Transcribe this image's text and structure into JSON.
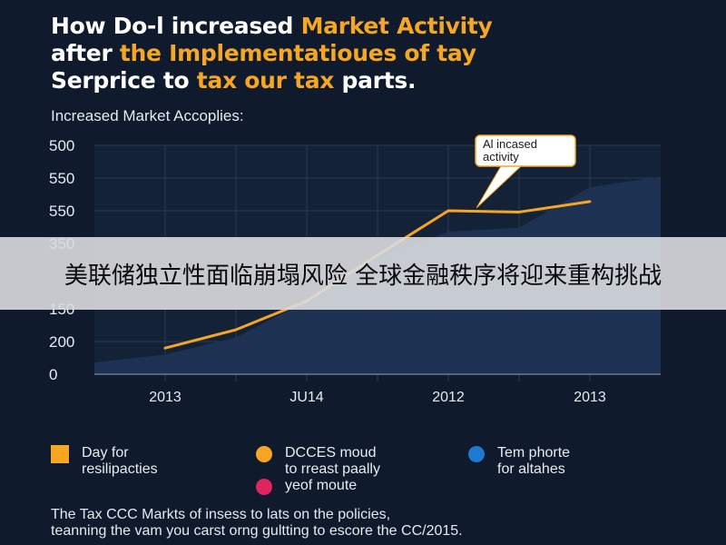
{
  "header": {
    "title_line1_white": "How Do-l increased ",
    "title_line1_orange": "Market Activity",
    "title_line2_white": "after ",
    "title_line2_orange": "the Implementatioues of tay",
    "title_line3_white": "Serprice to ",
    "title_line3_orange": "tax our tax",
    "title_line3_end": " parts."
  },
  "chart_data": {
    "type": "line",
    "title": "How Do-l increased Market Activity after the Implementatioues of tay Serprice to tax our tax parts.",
    "subtitle": "Increased Market Accoplies:",
    "y_tick_labels": [
      "500",
      "550",
      "550",
      "350",
      "",
      "150",
      "200",
      "0"
    ],
    "x_tick_labels": [
      "2013",
      "JU14",
      "2012",
      "2013"
    ],
    "series": [
      {
        "type": "line",
        "color": "#f6a623",
        "x": [
          1,
          2,
          3,
          4,
          5,
          6,
          7
        ],
        "y": [
          200,
          340,
          560,
          910,
          1250,
          1240,
          1320
        ]
      },
      {
        "type": "area",
        "color": "#1e3454",
        "x": [
          0,
          1,
          2,
          3,
          4,
          5,
          6,
          7,
          8
        ],
        "y": [
          90,
          150,
          280,
          560,
          890,
          1090,
          1120,
          1430,
          1510
        ]
      }
    ],
    "annotation": {
      "line1": "Al incased",
      "line2": "activity"
    },
    "xlim": [
      0,
      8
    ],
    "ylim": [
      0,
      1750
    ]
  },
  "legend": [
    {
      "line1": "Day for",
      "line2": "resilipacties",
      "color": "#f6a623",
      "shape": "square"
    },
    {
      "line1": "DCCES moud",
      "line2": "to rreast paally",
      "color": "#f6a623",
      "shape": "circle"
    },
    {
      "line1": "Tem phorte",
      "line2": "for altahes",
      "color": "#1f78d1",
      "shape": "circle"
    },
    {
      "line1": "yeof moute",
      "line2": "",
      "color": "#e0245e",
      "shape": "circle"
    }
  ],
  "footnote": {
    "line1": "The Tax CCC Markts of insess to lats on the policies,",
    "line2": "teanning the vam you carst orng gultting to escore the CC/2015."
  },
  "banner": {
    "text": "美联储独立性面临崩塌风险 全球金融秩序将迎来重构挑战"
  }
}
